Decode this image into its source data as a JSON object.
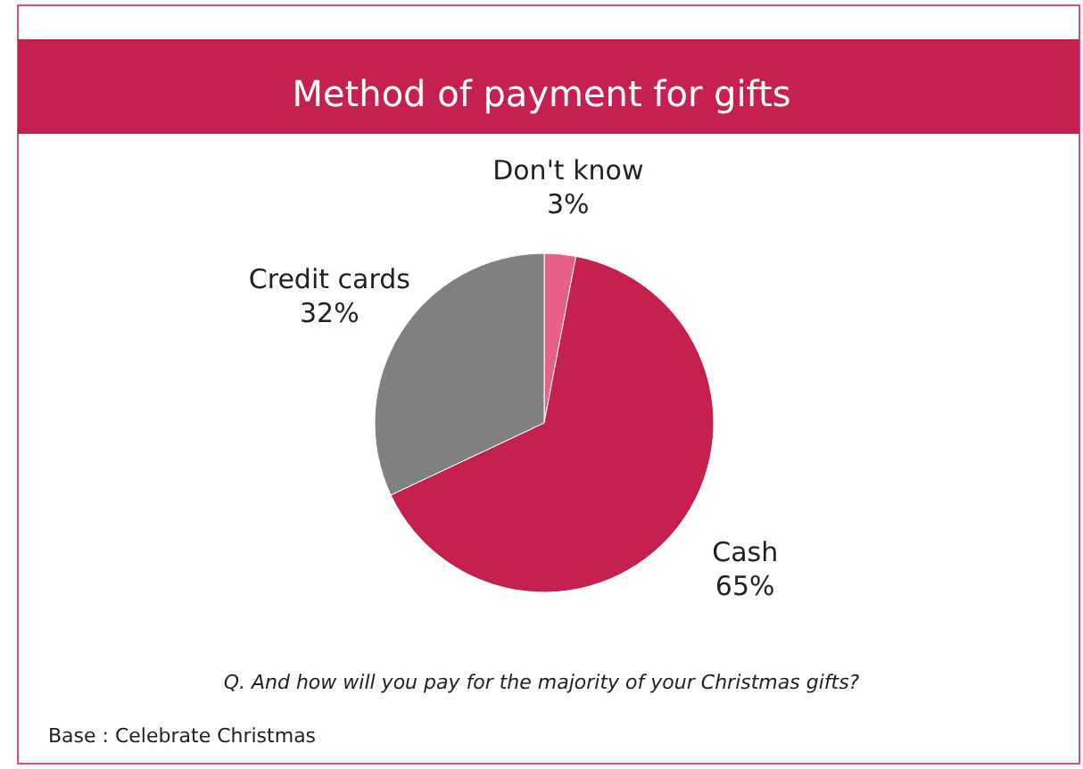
{
  "chart_data": {
    "type": "pie",
    "title": "Method of payment for gifts",
    "categories": [
      "Don't know",
      "Cash",
      "Credit cards"
    ],
    "values": [
      3,
      65,
      32
    ],
    "colors": [
      "#e8608a",
      "#c42150",
      "#808080"
    ],
    "value_labels": [
      "3%",
      "65%",
      "32%"
    ],
    "annotations": [
      "Q. And how will you pay for the majority of your Christmas gifts?",
      "Base : Celebrate Christmas"
    ]
  }
}
